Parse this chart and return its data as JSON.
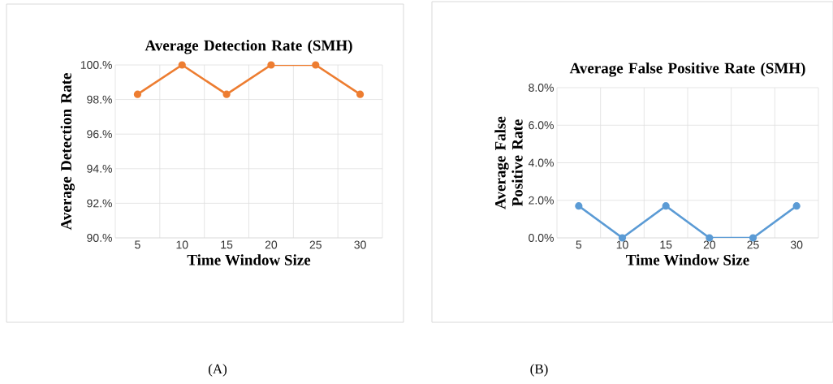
{
  "chart_data": [
    {
      "type": "line",
      "title": "Average Detection Rate (SMH)",
      "xlabel": "Time Window Size",
      "ylabel": "Average Detection Rate",
      "categories": [
        "5",
        "10",
        "15",
        "20",
        "25",
        "30"
      ],
      "series": [
        {
          "color": "#ed7d31",
          "values": [
            98.3,
            100,
            98.3,
            100,
            100,
            98.3
          ]
        }
      ],
      "ylim": [
        90,
        100
      ],
      "yticks": [
        {
          "value": 90,
          "label": "90.%"
        },
        {
          "value": 92,
          "label": "92.%"
        },
        {
          "value": 94,
          "label": "94.%"
        },
        {
          "value": 96,
          "label": "96.%"
        },
        {
          "value": 98,
          "label": "98.%"
        },
        {
          "value": 100,
          "label": "100.%"
        }
      ],
      "grid": true,
      "marker": "circle",
      "annotations": [
        "(A)"
      ]
    },
    {
      "type": "line",
      "title": "Average False Positive Rate (SMH)",
      "xlabel": "Time Window Size",
      "ylabel": "Average False Positive Rate",
      "categories": [
        "5",
        "10",
        "15",
        "20",
        "25",
        "30"
      ],
      "series": [
        {
          "color": "#5b9bd5",
          "values": [
            1.7,
            0,
            1.7,
            0,
            0,
            1.7
          ]
        }
      ],
      "ylim": [
        0,
        8
      ],
      "yticks": [
        {
          "value": 0,
          "label": "0.0%"
        },
        {
          "value": 2,
          "label": "2.0%"
        },
        {
          "value": 4,
          "label": "4.0%"
        },
        {
          "value": 6,
          "label": "6.0%"
        },
        {
          "value": 8,
          "label": "8.0%"
        }
      ],
      "grid": true,
      "marker": "circle",
      "annotations": [
        "(B)"
      ]
    }
  ]
}
